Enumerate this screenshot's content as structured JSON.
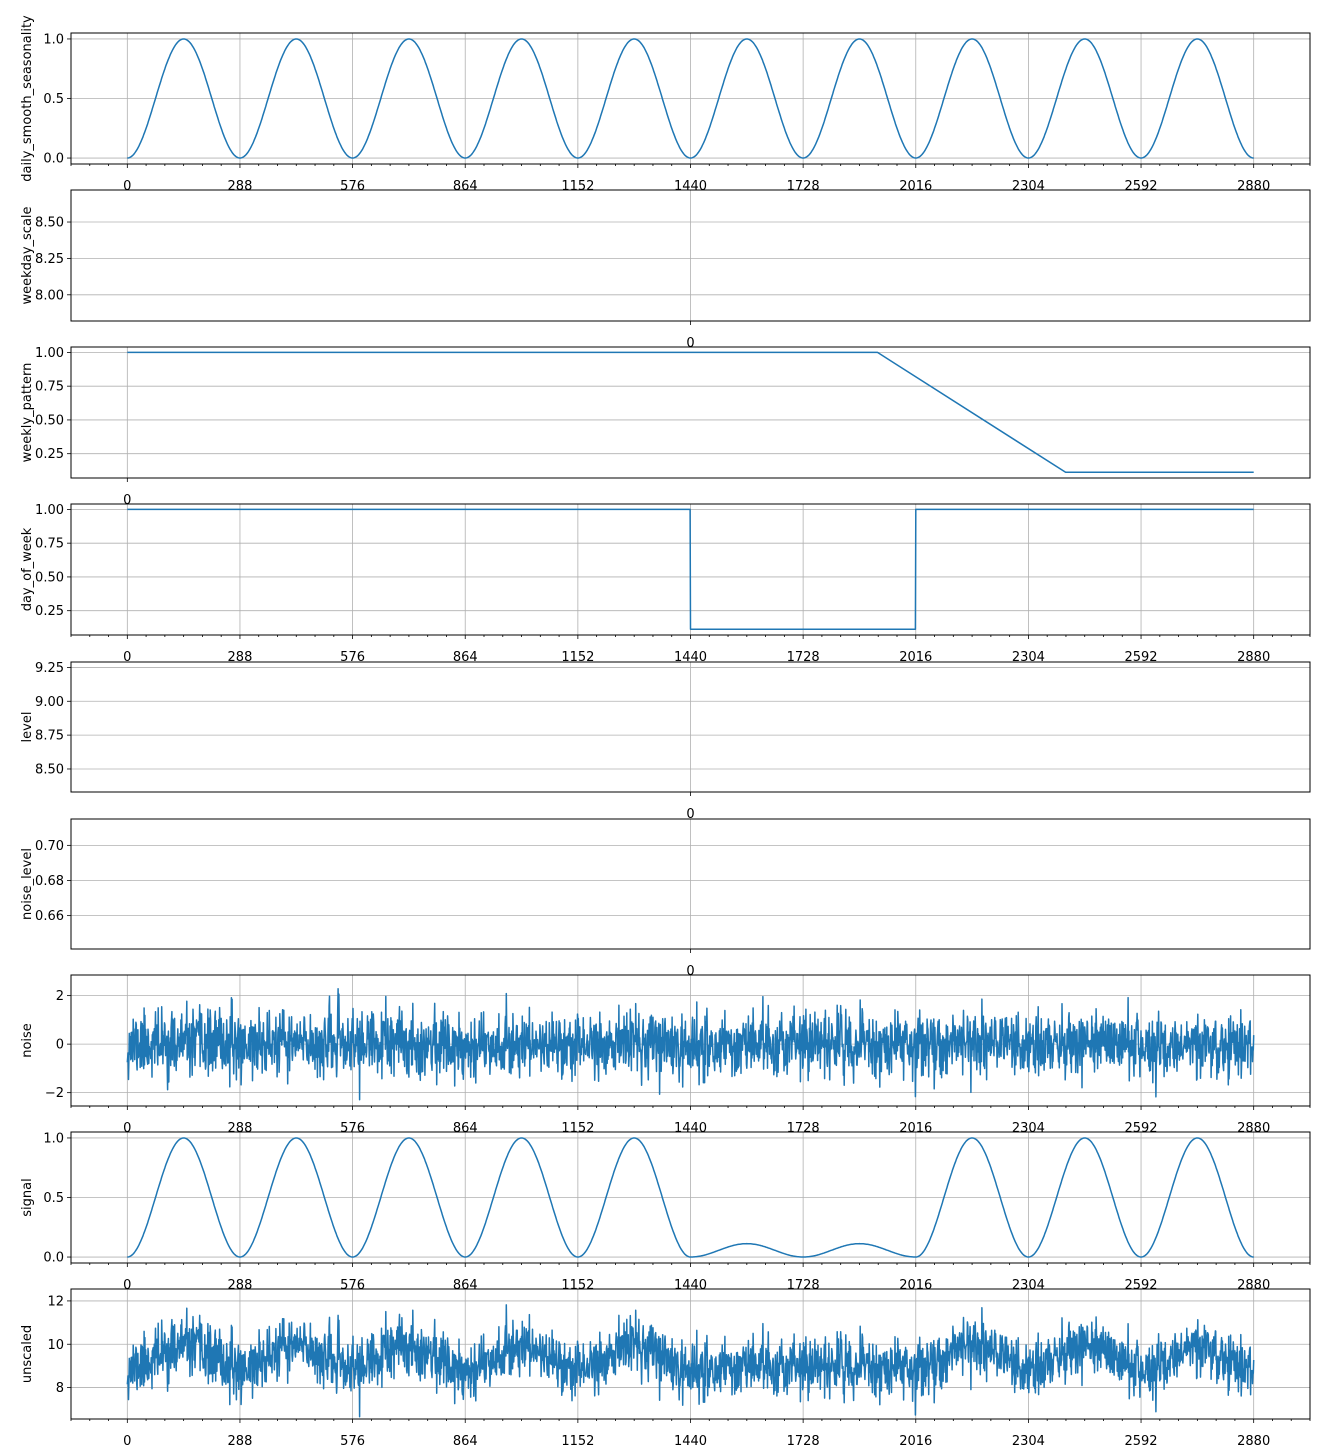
{
  "line_color": "#1f77b4",
  "grid_color": "#b0b0b0",
  "chart_data": [
    {
      "type": "line",
      "ylabel": "daily_smooth_seasonality",
      "x_ticks": [
        0,
        288,
        576,
        864,
        1152,
        1440,
        1728,
        2016,
        2304,
        2592,
        2880
      ],
      "y_ticks": [
        "0.0",
        "0.5",
        "1.0"
      ],
      "xlim": [
        -144,
        3024
      ],
      "ylim": [
        -0.05,
        1.05
      ],
      "x_minor_step": 48,
      "grid": true,
      "series": {
        "kind": "raised_cosine",
        "period": 288,
        "x_range": [
          0,
          2880
        ],
        "min": 0,
        "max": 1
      }
    },
    {
      "type": "line",
      "ylabel": "weekday_scale",
      "x_ticks": [
        0
      ],
      "y_ticks": [
        "8.00",
        "8.25",
        "8.50"
      ],
      "xlim": [
        -0.055,
        0.055
      ],
      "ylim": [
        7.82,
        8.72
      ],
      "grid": true,
      "series": {
        "kind": "empty"
      }
    },
    {
      "type": "line",
      "ylabel": "weekly_pattern",
      "x_ticks": [
        0
      ],
      "y_ticks": [
        "0.25",
        "0.50",
        "0.75",
        "1.00"
      ],
      "xlim": [
        -0.05,
        1.05
      ],
      "ylim": [
        0.07,
        1.04
      ],
      "grid": true,
      "series": {
        "kind": "points",
        "x": [
          0,
          0.666,
          0.833,
          1
        ],
        "y": [
          1.0,
          1.0,
          0.1125,
          0.1125
        ]
      }
    },
    {
      "type": "line",
      "ylabel": "day_of_week",
      "x_ticks": [
        0,
        288,
        576,
        864,
        1152,
        1440,
        1728,
        2016,
        2304,
        2592,
        2880
      ],
      "y_ticks": [
        "0.25",
        "0.50",
        "0.75",
        "1.00"
      ],
      "xlim": [
        -144,
        3024
      ],
      "ylim": [
        0.07,
        1.04
      ],
      "x_minor_step": 48,
      "grid": true,
      "series": {
        "kind": "points",
        "x": [
          0,
          1439,
          1440,
          2015,
          2016,
          2880
        ],
        "y": [
          1.0,
          1.0,
          0.1125,
          0.1125,
          1.0,
          1.0
        ]
      }
    },
    {
      "type": "line",
      "ylabel": "level",
      "x_ticks": [
        0
      ],
      "y_ticks": [
        "8.50",
        "8.75",
        "9.00",
        "9.25"
      ],
      "xlim": [
        -0.055,
        0.055
      ],
      "ylim": [
        8.33,
        9.29
      ],
      "grid": true,
      "series": {
        "kind": "empty"
      }
    },
    {
      "type": "line",
      "ylabel": "noise_level",
      "x_ticks": [
        0
      ],
      "y_ticks": [
        "0.66",
        "0.68",
        "0.70"
      ],
      "xlim": [
        -0.055,
        0.055
      ],
      "ylim": [
        0.641,
        0.715
      ],
      "grid": true,
      "series": {
        "kind": "empty"
      }
    },
    {
      "type": "line",
      "ylabel": "noise",
      "x_ticks": [
        0,
        288,
        576,
        864,
        1152,
        1440,
        1728,
        2016,
        2304,
        2592,
        2880
      ],
      "y_ticks": [
        "−2",
        "0",
        "2"
      ],
      "xlim": [
        -144,
        3024
      ],
      "ylim": [
        -2.55,
        2.85
      ],
      "x_minor_step": 48,
      "grid": true,
      "series": {
        "kind": "noise",
        "n": 2880,
        "sd": 0.66,
        "seed": 11
      }
    },
    {
      "type": "line",
      "ylabel": "signal",
      "x_ticks": [
        0,
        288,
        576,
        864,
        1152,
        1440,
        1728,
        2016,
        2304,
        2592,
        2880
      ],
      "y_ticks": [
        "0.0",
        "0.5",
        "1.0"
      ],
      "xlim": [
        -144,
        3024
      ],
      "ylim": [
        -0.05,
        1.05
      ],
      "x_minor_step": 48,
      "grid": true,
      "series": {
        "kind": "raised_cosine_scaled",
        "period": 288,
        "x_range": [
          0,
          2880
        ],
        "scale_breaks": [
          [
            0,
            1439,
            1.0
          ],
          [
            1440,
            2015,
            0.1125
          ],
          [
            2016,
            2880,
            1.0
          ]
        ]
      }
    },
    {
      "type": "line",
      "ylabel": "unscaled",
      "x_ticks": [
        0,
        288,
        576,
        864,
        1152,
        1440,
        1728,
        2016,
        2304,
        2592,
        2880
      ],
      "y_ticks": [
        "8",
        "10",
        "12"
      ],
      "xlim": [
        -144,
        3024
      ],
      "ylim": [
        6.55,
        12.55
      ],
      "x_minor_step": 48,
      "grid": true,
      "series": {
        "kind": "level_plus_signal_noise",
        "level": 8.9,
        "n": 2880
      }
    }
  ]
}
